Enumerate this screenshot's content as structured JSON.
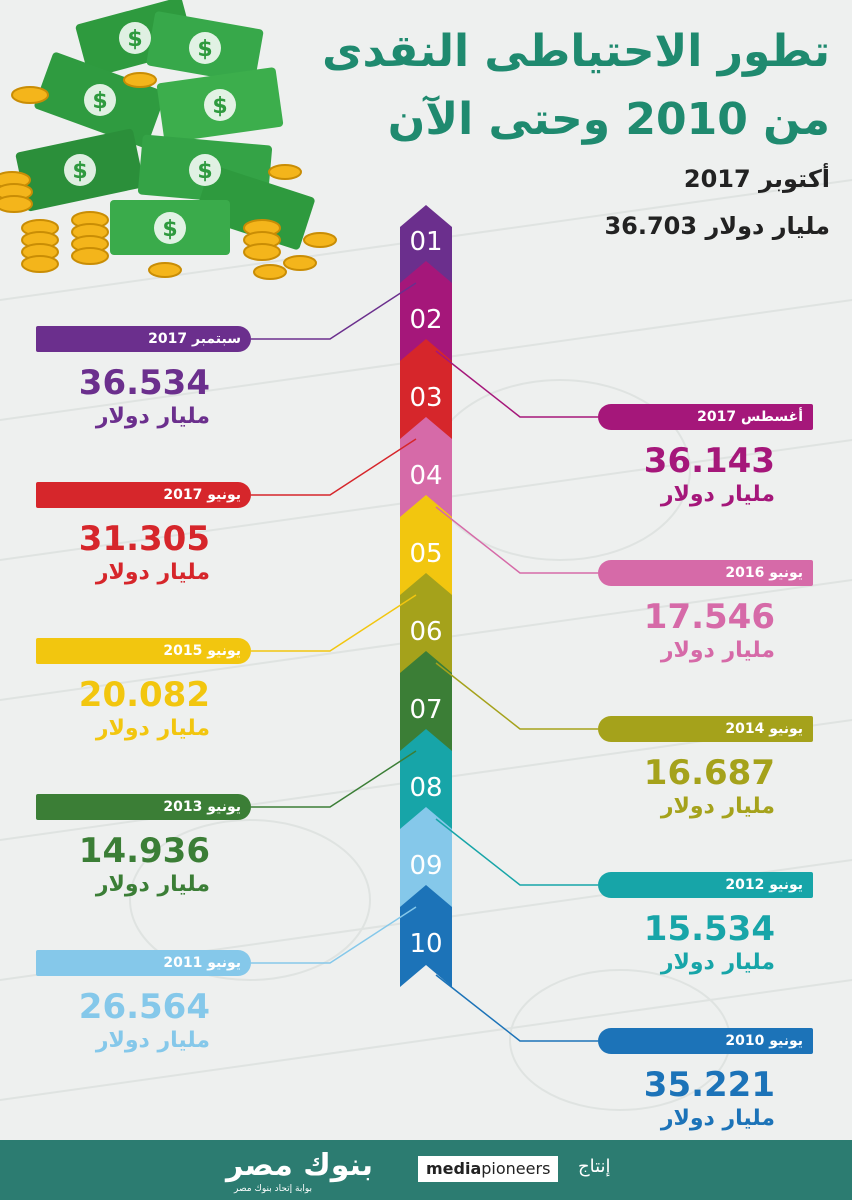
{
  "title_line1": "تطور الاحتياطى النقدى",
  "title_line2": "من 2010 وحتى الآن",
  "top": {
    "date": "أكتوبر 2017",
    "value": "36.703",
    "unit": "مليار دولار"
  },
  "colors": {
    "title": "#1f8a6f",
    "footer": "#2c7c71"
  },
  "steps": [
    {
      "num": "01",
      "color": "#6b2f8d"
    },
    {
      "num": "02",
      "color": "#a5177a"
    },
    {
      "num": "03",
      "color": "#d6262b"
    },
    {
      "num": "04",
      "color": "#d66aa8"
    },
    {
      "num": "05",
      "color": "#f2c60f"
    },
    {
      "num": "06",
      "color": "#a5a21b"
    },
    {
      "num": "07",
      "color": "#3b7e36"
    },
    {
      "num": "08",
      "color": "#17a5a8"
    },
    {
      "num": "09",
      "color": "#85c8ea"
    },
    {
      "num": "10",
      "color": "#1c73b8"
    }
  ],
  "entries": [
    {
      "step": "02",
      "date": "سبتمبر 2017",
      "value": "36.534",
      "unit": "مليار دولار",
      "side": "left",
      "color": "#6b2f8d"
    },
    {
      "step": "03",
      "date": "أغسطس 2017",
      "value": "36.143",
      "unit": "مليار دولار",
      "side": "right",
      "color": "#a5177a"
    },
    {
      "step": "04",
      "date": "يونيو 2017",
      "value": "31.305",
      "unit": "مليار دولار",
      "side": "left",
      "color": "#d6262b"
    },
    {
      "step": "05",
      "date": "يونيو 2016",
      "value": "17.546",
      "unit": "مليار دولار",
      "side": "right",
      "color": "#d66aa8"
    },
    {
      "step": "06",
      "date": "يونيو 2015",
      "value": "20.082",
      "unit": "مليار دولار",
      "side": "left",
      "color": "#f2c60f"
    },
    {
      "step": "07",
      "date": "يونيو 2014",
      "value": "16.687",
      "unit": "مليار دولار",
      "side": "right",
      "color": "#a5a21b"
    },
    {
      "step": "08",
      "date": "يونيو 2013",
      "value": "14.936",
      "unit": "مليار دولار",
      "side": "left",
      "color": "#3b7e36"
    },
    {
      "step": "09",
      "date": "يونيو 2012",
      "value": "15.534",
      "unit": "مليار دولار",
      "side": "right",
      "color": "#17a5a8"
    },
    {
      "step": "10",
      "date": "يونيو 2011",
      "value": "26.564",
      "unit": "مليار دولار",
      "side": "left",
      "color": "#85c8ea"
    },
    {
      "step": "10b",
      "date": "يونيو 2010",
      "value": "35.221",
      "unit": "مليار دولار",
      "side": "right",
      "color": "#1c73b8"
    }
  ],
  "footer": {
    "produced_by": "إنتاج",
    "media_bold": "media",
    "media_light": "pioneers",
    "brand": "بنوك مصر",
    "brand_sub": "بوابة إتحاد بنوك مصر"
  }
}
